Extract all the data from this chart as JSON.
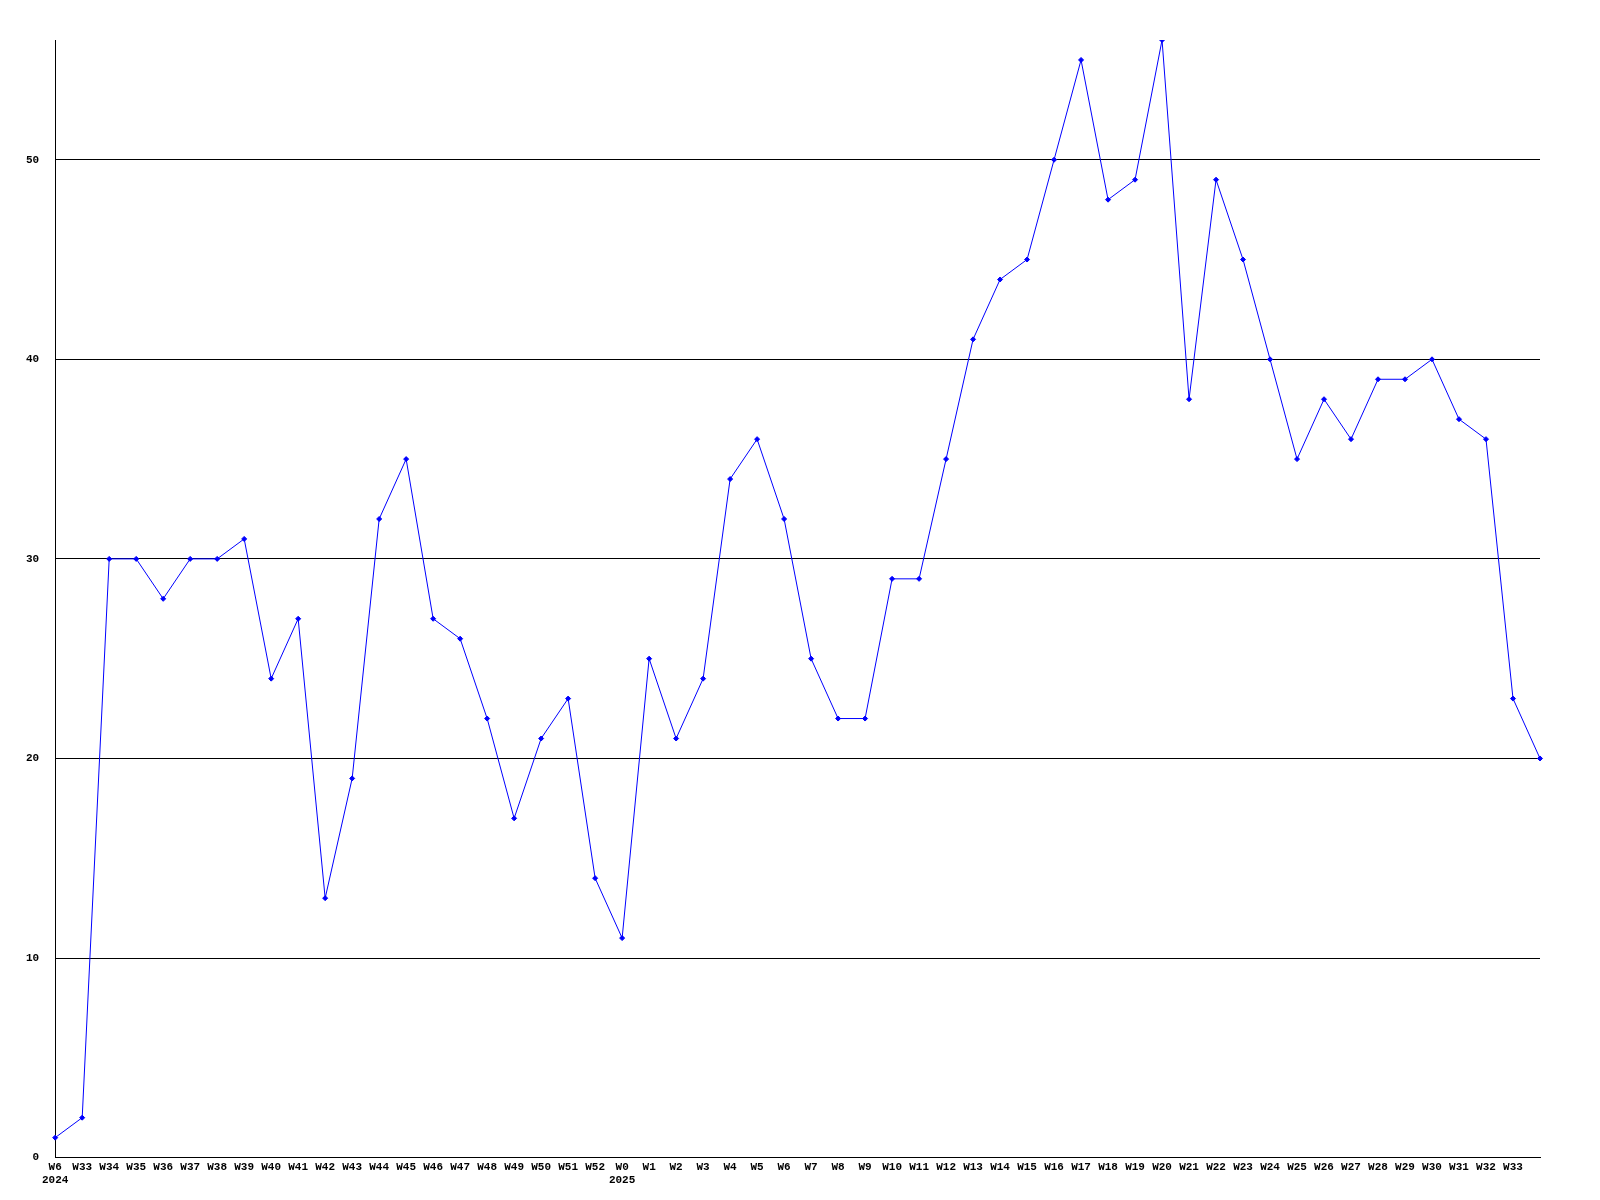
{
  "chart_data": {
    "type": "line",
    "categories": [
      "W6\n2024",
      "W33",
      "W34",
      "W35",
      "W36",
      "W37",
      "W38",
      "W39",
      "W40",
      "W41",
      "W42",
      "W43",
      "W44",
      "W45",
      "W46",
      "W47",
      "W48",
      "W49",
      "W50",
      "W51",
      "W52",
      "W0\n2025",
      "W1",
      "W2",
      "W3",
      "W4",
      "W5",
      "W6",
      "W7",
      "W8",
      "W9",
      "W10",
      "W11",
      "W12",
      "W13",
      "W14",
      "W15",
      "W16",
      "W17",
      "W18",
      "W19",
      "W20",
      "W21",
      "W22",
      "W23",
      "W24",
      "W25",
      "W26",
      "W27",
      "W28",
      "W29",
      "W30",
      "W31",
      "W32",
      "W33",
      null
    ],
    "series": [
      {
        "color": "#0000ff",
        "values": [
          1,
          2,
          30,
          30,
          28,
          30,
          30,
          31,
          24,
          27,
          13,
          19,
          32,
          35,
          27,
          26,
          22,
          17,
          21,
          23,
          14,
          11,
          25,
          21,
          24,
          34,
          36,
          32,
          25,
          22,
          22,
          29,
          29,
          35,
          41,
          44,
          45,
          50,
          55,
          48,
          49,
          56,
          38,
          49,
          45,
          40,
          35,
          38,
          36,
          39,
          39,
          40,
          37,
          36,
          23,
          20
        ]
      }
    ],
    "ylim": [
      0,
      56
    ],
    "yticks": [
      0,
      10,
      20,
      30,
      40,
      50
    ],
    "grid": "y",
    "legend": false,
    "marker": "diamond",
    "line_style": "solid"
  }
}
